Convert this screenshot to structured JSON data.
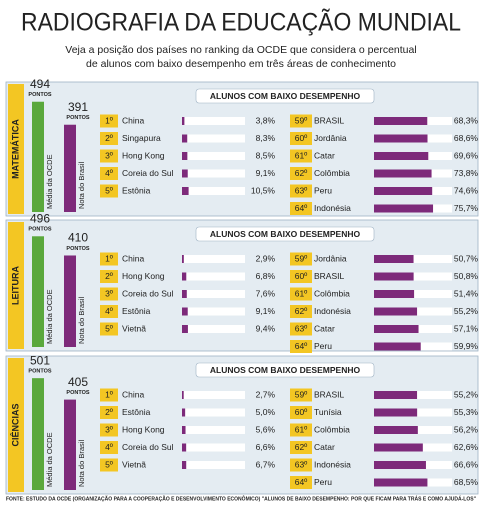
{
  "title": "RADIOGRAFIA DA EDUCAÇÃO MUNDIAL",
  "subtitle": [
    "Veja a posição dos países no ranking da OCDE que considera o percentual",
    "de alunos com baixo desempenho em três áreas de conhecimento"
  ],
  "source": "FONTE: ESTUDO DA OCDE (ORGANIZAÇÃO PARA A COOPERAÇÃO E DESENVOLVIMENTO ECONÔMICO) \"ALUNOS DE BAIXO DESEMPENHO: POR QUE FICAM PARA TRÁS E COMO AJUDÁ-LOS\"",
  "chart_data": [
    {
      "type": "bar",
      "label": "MATEMÁTICA",
      "header": "ALUNOS COM BAIXO DESEMPENHO",
      "xlim": [
        0,
        100
      ],
      "ylim": [
        0,
        560
      ],
      "ocde": {
        "value": 494,
        "unit": "PONTOS",
        "label": "Média da OCDE",
        "color": "#5aa83c"
      },
      "brasil": {
        "value": 391,
        "unit": "PONTOS",
        "label": "Nota do Brasil",
        "color": "#7d2a7a"
      },
      "top": {
        "ranks": [
          "1º",
          "2º",
          "3º",
          "4º",
          "5º"
        ],
        "categories": [
          "China",
          "Singapura",
          "Hong Kong",
          "Coreia do Sul",
          "Estônia"
        ],
        "values": [
          3.8,
          8.3,
          8.5,
          9.1,
          10.5
        ],
        "value_labels": [
          "3,8%",
          "8,3%",
          "8,5%",
          "9,1%",
          "10,5%"
        ]
      },
      "bottom": {
        "ranks": [
          "59º",
          "60º",
          "61º",
          "62º",
          "63º",
          "64º"
        ],
        "categories": [
          "BRASIL",
          "Jordânia",
          "Catar",
          "Colômbia",
          "Peru",
          "Indonésia"
        ],
        "values": [
          68.3,
          68.6,
          69.6,
          73.8,
          74.6,
          75.7
        ],
        "value_labels": [
          "68,3%",
          "68,6%",
          "69,6%",
          "73,8%",
          "74,6%",
          "75,7%"
        ]
      }
    },
    {
      "type": "bar",
      "label": "LEITURA",
      "header": "ALUNOS COM BAIXO DESEMPENHO",
      "xlim": [
        0,
        100
      ],
      "ylim": [
        0,
        560
      ],
      "ocde": {
        "value": 496,
        "unit": "PONTOS",
        "label": "Média da OCDE",
        "color": "#5aa83c"
      },
      "brasil": {
        "value": 410,
        "unit": "PONTOS",
        "label": "Nota do Brasil",
        "color": "#7d2a7a"
      },
      "top": {
        "ranks": [
          "1º",
          "2º",
          "3º",
          "4º",
          "5º"
        ],
        "categories": [
          "China",
          "Hong Kong",
          "Coreia do Sul",
          "Estônia",
          "Vietnã"
        ],
        "values": [
          2.9,
          6.8,
          7.6,
          9.1,
          9.4
        ],
        "value_labels": [
          "2,9%",
          "6,8%",
          "7,6%",
          "9,1%",
          "9,4%"
        ]
      },
      "bottom": {
        "ranks": [
          "59º",
          "60º",
          "61º",
          "62º",
          "63º",
          "64º"
        ],
        "categories": [
          "Jordânia",
          "BRASIL",
          "Colômbia",
          "Indonésia",
          "Catar",
          "Peru"
        ],
        "values": [
          50.7,
          50.8,
          51.4,
          55.2,
          57.1,
          59.9
        ],
        "value_labels": [
          "50,7%",
          "50,8%",
          "51,4%",
          "55,2%",
          "57,1%",
          "59,9%"
        ]
      }
    },
    {
      "type": "bar",
      "label": "CIÊNCIAS",
      "header": "ALUNOS COM BAIXO DESEMPENHO",
      "xlim": [
        0,
        100
      ],
      "ylim": [
        0,
        560
      ],
      "ocde": {
        "value": 501,
        "unit": "PONTOS",
        "label": "Média da OCDE",
        "color": "#5aa83c"
      },
      "brasil": {
        "value": 405,
        "unit": "PONTOS",
        "label": "Nota do Brasil",
        "color": "#7d2a7a"
      },
      "top": {
        "ranks": [
          "1º",
          "2º",
          "3º",
          "4º",
          "5º"
        ],
        "categories": [
          "China",
          "Estônia",
          "Hong Kong",
          "Coreia do Sul",
          "Vietnã"
        ],
        "values": [
          2.7,
          5.0,
          5.6,
          6.6,
          6.7
        ],
        "value_labels": [
          "2,7%",
          "5,0%",
          "5,6%",
          "6,6%",
          "6,7%"
        ]
      },
      "bottom": {
        "ranks": [
          "59º",
          "60º",
          "61º",
          "62º",
          "63º",
          "64º"
        ],
        "categories": [
          "BRASIL",
          "Tunísia",
          "Colômbia",
          "Catar",
          "Indonésia",
          "Peru"
        ],
        "values": [
          55.2,
          55.3,
          56.2,
          62.6,
          66.6,
          68.5
        ],
        "value_labels": [
          "55,2%",
          "55,3%",
          "56,2%",
          "62,6%",
          "66,6%",
          "68,5%"
        ]
      }
    }
  ]
}
